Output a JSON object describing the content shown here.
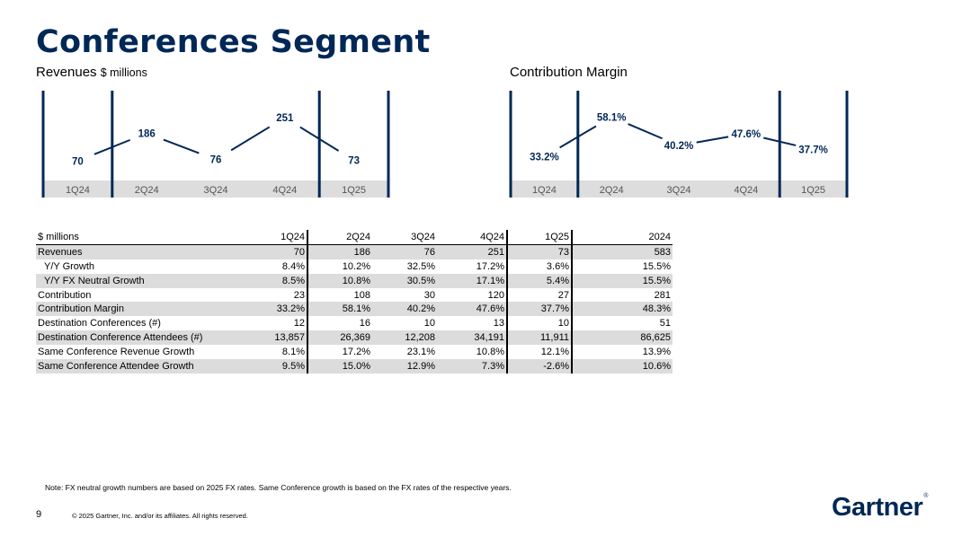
{
  "page": {
    "title": "Conferences Segment",
    "note": "Note: FX neutral growth numbers are based on 2025 FX rates. Same Conference growth is based on the FX rates of the respective years.",
    "page_number": "9",
    "copyright": "© 2025 Gartner, Inc. and/or its affiliates. All rights reserved.",
    "logo_text": "Gartner",
    "logo_mark": "®"
  },
  "colors": {
    "navy": "#002856",
    "axis_band": "#dddddd",
    "quarter_label": "#555555",
    "row_shade": "#dcdcdc"
  },
  "chart_data": [
    {
      "type": "line",
      "title": "Revenues",
      "unit": "$ millions",
      "categories": [
        "1Q24",
        "2Q24",
        "3Q24",
        "4Q24",
        "1Q25"
      ],
      "values": [
        70,
        186,
        76,
        251,
        73
      ],
      "labels": [
        "70",
        "186",
        "76",
        "251",
        "73"
      ],
      "ylim": [
        0,
        300
      ],
      "year_separators_after": [
        0,
        3
      ],
      "grid": false
    },
    {
      "type": "line",
      "title": "Contribution Margin",
      "unit": "%",
      "categories": [
        "1Q24",
        "2Q24",
        "3Q24",
        "4Q24",
        "1Q25"
      ],
      "values": [
        33.2,
        58.1,
        40.2,
        47.6,
        37.7
      ],
      "labels": [
        "33.2%",
        "58.1%",
        "40.2%",
        "47.6%",
        "37.7%"
      ],
      "ylim": [
        20,
        65
      ],
      "year_separators_after": [
        0,
        3
      ],
      "grid": false
    }
  ],
  "table": {
    "header": [
      "$ millions",
      "1Q24",
      "2Q24",
      "3Q24",
      "4Q24",
      "1Q25",
      "2024"
    ],
    "rows": [
      {
        "label": "Revenues",
        "indent": false,
        "shaded": true,
        "values": [
          "70",
          "186",
          "76",
          "251",
          "73",
          "583"
        ]
      },
      {
        "label": "Y/Y Growth",
        "indent": true,
        "shaded": false,
        "values": [
          "8.4%",
          "10.2%",
          "32.5%",
          "17.2%",
          "3.6%",
          "15.5%"
        ]
      },
      {
        "label": "Y/Y FX Neutral Growth",
        "indent": true,
        "shaded": true,
        "values": [
          "8.5%",
          "10.8%",
          "30.5%",
          "17.1%",
          "5.4%",
          "15.5%"
        ]
      },
      {
        "label": "Contribution",
        "indent": false,
        "shaded": false,
        "values": [
          "23",
          "108",
          "30",
          "120",
          "27",
          "281"
        ]
      },
      {
        "label": "Contribution Margin",
        "indent": false,
        "shaded": true,
        "values": [
          "33.2%",
          "58.1%",
          "40.2%",
          "47.6%",
          "37.7%",
          "48.3%"
        ]
      },
      {
        "label": "Destination Conferences (#)",
        "indent": false,
        "shaded": false,
        "values": [
          "12",
          "16",
          "10",
          "13",
          "10",
          "51"
        ]
      },
      {
        "label": "Destination Conference Attendees (#)",
        "indent": false,
        "shaded": true,
        "values": [
          "13,857",
          "26,369",
          "12,208",
          "34,191",
          "11,911",
          "86,625"
        ]
      },
      {
        "label": "Same Conference Revenue Growth",
        "indent": false,
        "shaded": false,
        "values": [
          "8.1%",
          "17.2%",
          "23.1%",
          "10.8%",
          "12.1%",
          "13.9%"
        ]
      },
      {
        "label": "Same Conference Attendee Growth",
        "indent": false,
        "shaded": true,
        "values": [
          "9.5%",
          "15.0%",
          "12.9%",
          "7.3%",
          "-2.6%",
          "10.6%"
        ]
      }
    ]
  }
}
